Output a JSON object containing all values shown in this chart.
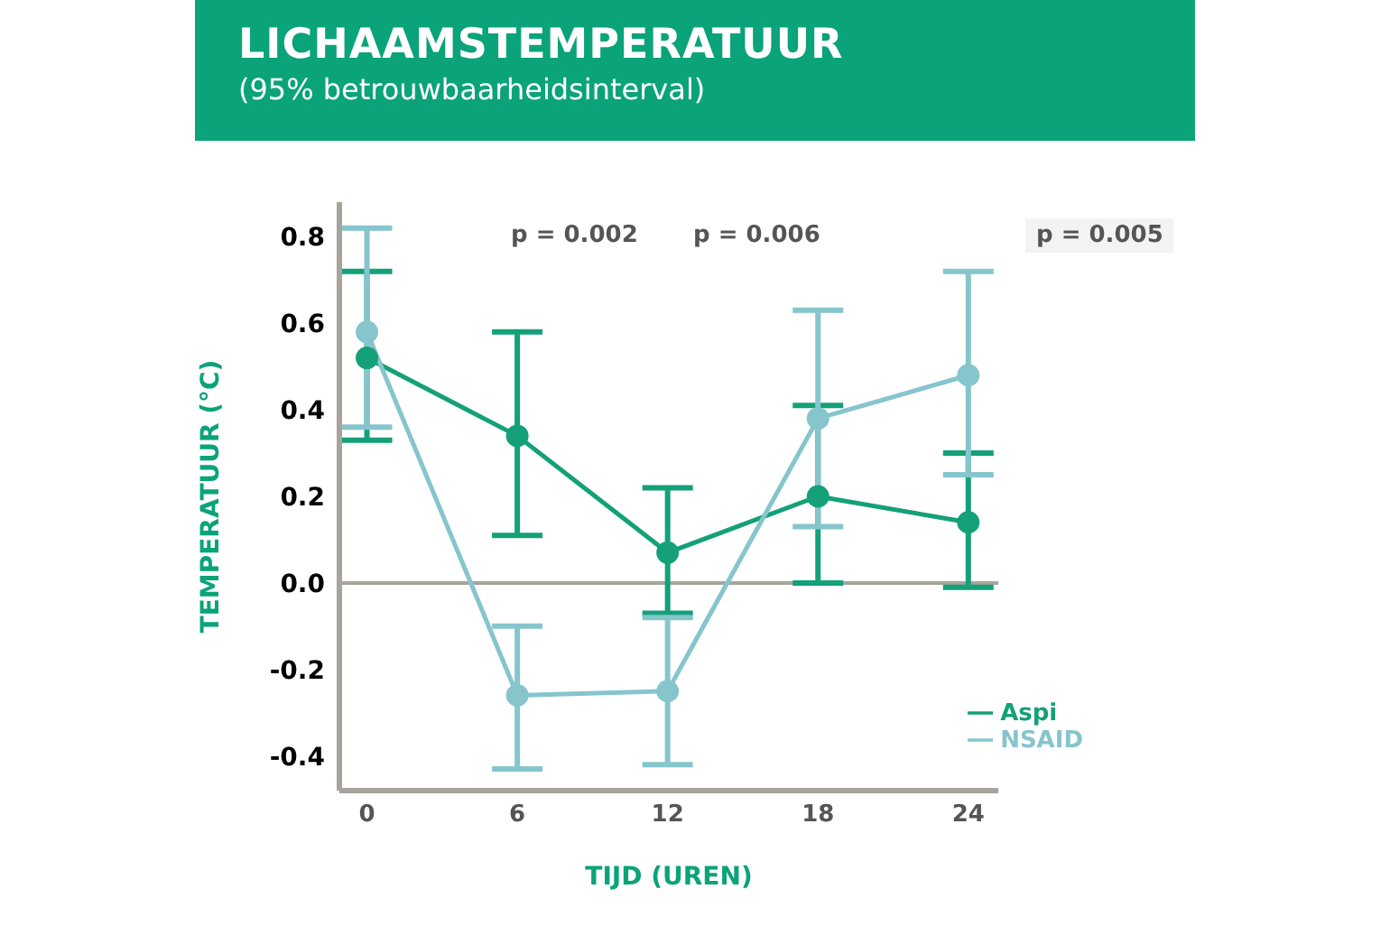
{
  "chart_data": {
    "type": "line",
    "title": "LICHAAMSTEMPERATUUR",
    "subtitle": "(95% betrouwbaarheidsinterval)",
    "xlabel": "TIJD (UREN)",
    "ylabel": "TEMPERATUUR (°C)",
    "x": [
      0,
      6,
      12,
      18,
      24
    ],
    "series": [
      {
        "name": "Aspi",
        "color": "#14a078",
        "values": [
          0.52,
          0.34,
          0.07,
          0.2,
          0.14
        ],
        "errors": [
          [
            0.33,
            0.72
          ],
          [
            0.11,
            0.58
          ],
          [
            -0.07,
            0.22
          ],
          [
            0,
            0.41
          ],
          [
            -0.01,
            0.3
          ]
        ]
      },
      {
        "name": "NSAID",
        "color": "#86c5cc",
        "values": [
          0.58,
          -0.26,
          -0.25,
          0.38,
          0.48
        ],
        "errors": [
          [
            0.36,
            0.82
          ],
          [
            -0.43,
            -0.1
          ],
          [
            -0.42,
            -0.08
          ],
          [
            0.13,
            0.63
          ],
          [
            0.25,
            0.72
          ]
        ]
      }
    ],
    "xlim": [
      -1.1,
      25.2
    ],
    "xticks": [
      0,
      6,
      12,
      18,
      24
    ],
    "ylim": [
      -0.48,
      0.88
    ],
    "yticks": [
      {
        "value": -0.4,
        "label": "-0.4"
      },
      {
        "value": -0.2,
        "label": "-0.2"
      },
      {
        "value": 0,
        "label": "0.0"
      },
      {
        "value": 0.2,
        "label": "0.2"
      },
      {
        "value": 0.4,
        "label": "0.4"
      },
      {
        "value": 0.6,
        "label": "0.6"
      },
      {
        "value": 0.8,
        "label": "0.8"
      }
    ],
    "ref_lines": [
      {
        "axis": "y",
        "value": 0,
        "color": "#a8a49c"
      }
    ],
    "annotations": [
      "p = 0.002",
      "p = 0.006",
      "p = 0.005"
    ],
    "grid": false,
    "legend": "bottom right",
    "marker": "circle",
    "line_style": "solid"
  }
}
